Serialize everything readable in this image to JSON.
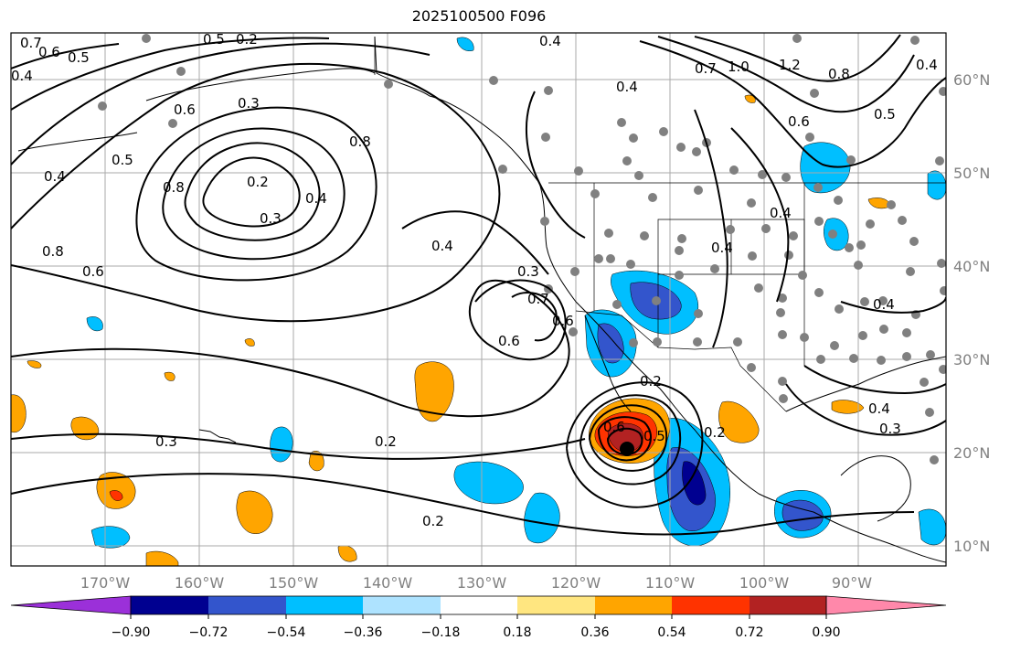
{
  "title": "2025100500 F096",
  "lon_ticks": [
    "170°W",
    "160°W",
    "150°W",
    "140°W",
    "130°W",
    "120°W",
    "110°W",
    "100°W",
    "90°W"
  ],
  "lat_ticks": [
    "60°N",
    "50°N",
    "40°N",
    "30°N",
    "20°N",
    "10°N"
  ],
  "colorbar": {
    "labels": [
      "−0.90",
      "−0.72",
      "−0.54",
      "−0.36",
      "−0.18",
      "0.18",
      "0.36",
      "0.54",
      "0.72",
      "0.90"
    ],
    "colors": [
      "#9b30d9",
      "#000090",
      "#3355cc",
      "#00bfff",
      "#aee3ff",
      "#ffffff",
      "#ffe680",
      "#ffa500",
      "#ff3300",
      "#b22222",
      "#ff88aa"
    ]
  },
  "contour_labels": [
    "0.7",
    "0.6",
    "0.5",
    "0.4",
    "0.2",
    "0.6",
    "0.4",
    "0.5",
    "0.5",
    "0.3",
    "0.8",
    "0.4",
    "0.8",
    "0.2",
    "0.3",
    "0.4",
    "0.8",
    "0.6",
    "0.4",
    "0.3",
    "0.7",
    "0.6",
    "0.6",
    "0.4",
    "0.6",
    "0.5",
    "0.3",
    "0.2",
    "0.2",
    "0.4",
    "0.4",
    "0.7",
    "1.0",
    "1.2",
    "0.8",
    "0.6",
    "0.5",
    "0.4",
    "0.3",
    "0.4",
    "0.2",
    "0.2",
    "0.4"
  ]
}
